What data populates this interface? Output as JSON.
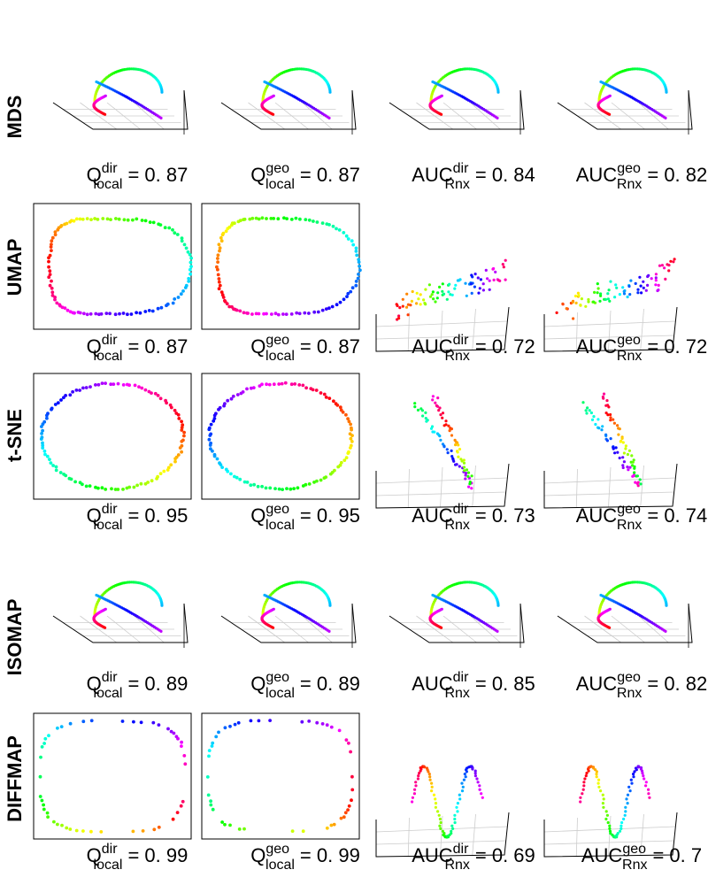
{
  "chart_data": {
    "type": "scatter",
    "title": "",
    "description_rows": [
      "MDS",
      "UMAP",
      "t-SNE",
      "ISOMAP",
      "DIFFMAP"
    ],
    "colormap": [
      "#ff0000",
      "#ff8000",
      "#ffff00",
      "#80ff00",
      "#00ff00",
      "#00ff80",
      "#00ffff",
      "#0080ff",
      "#0000ff",
      "#8000ff",
      "#ff00ff",
      "#ff0080"
    ],
    "rows": [
      {
        "method": "MDS",
        "panels": [
          {
            "kind": "3d-helix",
            "metric": {
              "base": "Q",
              "sup": "dir",
              "sub": "local",
              "value": "= 0. 87"
            }
          },
          {
            "kind": "3d-helix",
            "metric": {
              "base": "Q",
              "sup": "geo",
              "sub": "local",
              "value": "= 0. 87"
            }
          },
          {
            "kind": "3d-helix",
            "metric": {
              "base": "AUC",
              "sup": "dir",
              "sub": "Rnx",
              "value": "= 0. 84"
            }
          },
          {
            "kind": "3d-helix",
            "metric": {
              "base": "AUC",
              "sup": "geo",
              "sub": "Rnx",
              "value": "= 0. 82"
            }
          }
        ]
      },
      {
        "method": "UMAP",
        "panels": [
          {
            "kind": "2d-loop",
            "metric": {
              "base": "Q",
              "sup": "dir",
              "sub": "local",
              "value": "= 0. 87"
            }
          },
          {
            "kind": "2d-loop",
            "metric": {
              "base": "Q",
              "sup": "geo",
              "sub": "local",
              "value": "= 0. 87"
            }
          },
          {
            "kind": "3d-scatter",
            "metric": {
              "base": "AUC",
              "sup": "dir",
              "sub": "Rnx",
              "value": "= 0. 72"
            }
          },
          {
            "kind": "3d-scatter",
            "metric": {
              "base": "AUC",
              "sup": "geo",
              "sub": "Rnx",
              "value": "= 0. 72"
            }
          }
        ]
      },
      {
        "method": "t-SNE",
        "panels": [
          {
            "kind": "2d-ellipse",
            "metric": {
              "base": "Q",
              "sup": "dir",
              "sub": "local",
              "value": "= 0. 95"
            }
          },
          {
            "kind": "2d-ellipse",
            "metric": {
              "base": "Q",
              "sup": "geo",
              "sub": "local",
              "value": "= 0. 95"
            }
          },
          {
            "kind": "3d-diagonal",
            "metric": {
              "base": "AUC",
              "sup": "dir",
              "sub": "Rnx",
              "value": "= 0. 73"
            }
          },
          {
            "kind": "3d-diagonal",
            "metric": {
              "base": "AUC",
              "sup": "geo",
              "sub": "Rnx",
              "value": "= 0. 74"
            }
          }
        ]
      },
      {
        "method": "ISOMAP",
        "panels": [
          {
            "kind": "3d-helix",
            "metric": {
              "base": "Q",
              "sup": "dir",
              "sub": "local",
              "value": "= 0. 89"
            }
          },
          {
            "kind": "3d-helix",
            "metric": {
              "base": "Q",
              "sup": "geo",
              "sub": "local",
              "value": "= 0. 89"
            }
          },
          {
            "kind": "3d-helix",
            "metric": {
              "base": "AUC",
              "sup": "dir",
              "sub": "Rnx",
              "value": "= 0. 85"
            }
          },
          {
            "kind": "3d-helix",
            "metric": {
              "base": "AUC",
              "sup": "geo",
              "sub": "Rnx",
              "value": "= 0. 82"
            }
          }
        ]
      },
      {
        "method": "DIFFMAP",
        "panels": [
          {
            "kind": "2d-sparse-loop",
            "metric": {
              "base": "Q",
              "sup": "dir",
              "sub": "local",
              "value": "= 0. 99"
            }
          },
          {
            "kind": "2d-sparse-loop",
            "metric": {
              "base": "Q",
              "sup": "geo",
              "sub": "local",
              "value": "= 0. 99"
            }
          },
          {
            "kind": "3d-wave",
            "metric": {
              "base": "AUC",
              "sup": "dir",
              "sub": "Rnx",
              "value": "= 0. 69"
            }
          },
          {
            "kind": "3d-wave",
            "metric": {
              "base": "AUC",
              "sup": "geo",
              "sub": "Rnx",
              "value": "= 0. 7"
            }
          }
        ]
      }
    ]
  }
}
